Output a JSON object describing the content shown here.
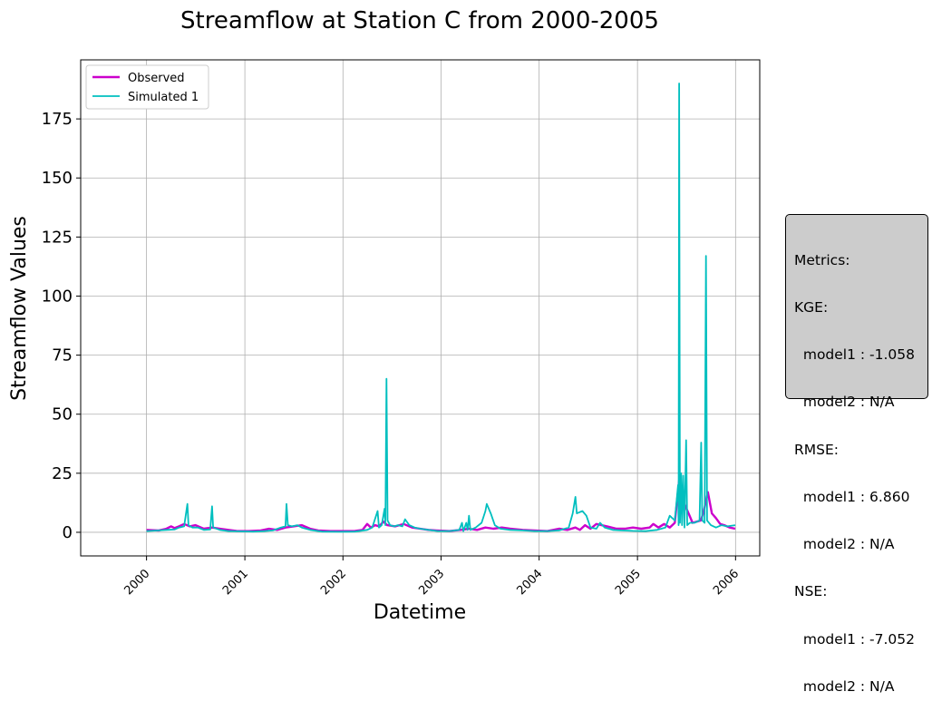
{
  "chart_data": {
    "type": "line",
    "title": "Streamflow at Station C from 2000-2005",
    "xlabel": "Datetime",
    "ylabel": "Streamflow Values",
    "x_range": [
      "1999-05-01",
      "2006-04-01"
    ],
    "ylim": [
      -10,
      200
    ],
    "x_ticks": [
      "2000",
      "2001",
      "2002",
      "2003",
      "2004",
      "2005",
      "2006"
    ],
    "y_ticks": [
      "0",
      "25",
      "50",
      "75",
      "100",
      "125",
      "150",
      "175"
    ],
    "grid": true,
    "legend": {
      "position": "top-left"
    },
    "series": [
      {
        "name": "Observed",
        "color": "#cc00cc",
        "points": [
          [
            "2000-01-01",
            1
          ],
          [
            "2000-02-15",
            0.8
          ],
          [
            "2000-03-15",
            1.5
          ],
          [
            "2000-04-01",
            2.5
          ],
          [
            "2000-04-15",
            1.8
          ],
          [
            "2000-05-01",
            2.5
          ],
          [
            "2000-05-20",
            3.5
          ],
          [
            "2000-06-10",
            2.5
          ],
          [
            "2000-07-01",
            3
          ],
          [
            "2000-08-01",
            1.5
          ],
          [
            "2000-09-01",
            2
          ],
          [
            "2000-10-01",
            1.5
          ],
          [
            "2000-11-01",
            1
          ],
          [
            "2000-12-01",
            0.6
          ],
          [
            "2001-01-15",
            0.5
          ],
          [
            "2001-03-01",
            0.8
          ],
          [
            "2001-04-01",
            1.5
          ],
          [
            "2001-05-01",
            1
          ],
          [
            "2001-06-01",
            2
          ],
          [
            "2001-07-01",
            2.5
          ],
          [
            "2001-08-01",
            3
          ],
          [
            "2001-09-01",
            1.5
          ],
          [
            "2001-10-01",
            0.8
          ],
          [
            "2001-11-15",
            0.5
          ],
          [
            "2002-01-01",
            0.5
          ],
          [
            "2002-02-15",
            0.6
          ],
          [
            "2002-03-15",
            1
          ],
          [
            "2002-04-01",
            3.5
          ],
          [
            "2002-04-15",
            2
          ],
          [
            "2002-05-01",
            3
          ],
          [
            "2002-05-15",
            2.5
          ],
          [
            "2002-06-01",
            4.5
          ],
          [
            "2002-06-15",
            3
          ],
          [
            "2002-07-15",
            2.5
          ],
          [
            "2002-08-15",
            3.5
          ],
          [
            "2002-09-15",
            2
          ],
          [
            "2002-10-15",
            1.5
          ],
          [
            "2002-11-15",
            1
          ],
          [
            "2002-12-15",
            0.8
          ],
          [
            "2003-02-01",
            0.5
          ],
          [
            "2003-03-15",
            1
          ],
          [
            "2003-04-15",
            1.5
          ],
          [
            "2003-05-15",
            1
          ],
          [
            "2003-06-15",
            2
          ],
          [
            "2003-07-15",
            1.5
          ],
          [
            "2003-08-15",
            2
          ],
          [
            "2003-09-15",
            1.5
          ],
          [
            "2003-11-01",
            1
          ],
          [
            "2003-12-15",
            0.8
          ],
          [
            "2004-02-01",
            0.5
          ],
          [
            "2004-03-15",
            1.5
          ],
          [
            "2004-04-15",
            1
          ],
          [
            "2004-05-15",
            2
          ],
          [
            "2004-06-01",
            1
          ],
          [
            "2004-06-20",
            3
          ],
          [
            "2004-07-10",
            1.5
          ],
          [
            "2004-08-01",
            3.5
          ],
          [
            "2004-08-20",
            3
          ],
          [
            "2004-09-10",
            2.5
          ],
          [
            "2004-10-15",
            1.5
          ],
          [
            "2004-11-15",
            1.5
          ],
          [
            "2004-12-15",
            2
          ],
          [
            "2005-01-15",
            1.5
          ],
          [
            "2005-02-15",
            2
          ],
          [
            "2005-03-01",
            3.5
          ],
          [
            "2005-03-20",
            2
          ],
          [
            "2005-04-10",
            3.5
          ],
          [
            "2005-05-01",
            2
          ],
          [
            "2005-05-20",
            4
          ],
          [
            "2005-06-05",
            22
          ],
          [
            "2005-06-15",
            18
          ],
          [
            "2005-06-25",
            12
          ],
          [
            "2005-07-10",
            8
          ],
          [
            "2005-07-25",
            4
          ],
          [
            "2005-08-10",
            4.5
          ],
          [
            "2005-08-25",
            5
          ],
          [
            "2005-09-05",
            9
          ],
          [
            "2005-09-20",
            17
          ],
          [
            "2005-10-05",
            8
          ],
          [
            "2005-10-20",
            6
          ],
          [
            "2005-11-05",
            3.5
          ],
          [
            "2005-11-20",
            3
          ],
          [
            "2005-12-10",
            2
          ],
          [
            "2005-12-31",
            1.5
          ]
        ]
      },
      {
        "name": "Simulated 1",
        "color": "#00bfbf",
        "points": [
          [
            "2000-01-01",
            0.5
          ],
          [
            "2000-02-15",
            0.8
          ],
          [
            "2000-03-15",
            1
          ],
          [
            "2000-04-15",
            1.2
          ],
          [
            "2000-05-01",
            2
          ],
          [
            "2000-05-20",
            2.5
          ],
          [
            "2000-06-01",
            12
          ],
          [
            "2000-06-05",
            3
          ],
          [
            "2000-06-20",
            2
          ],
          [
            "2000-07-10",
            2
          ],
          [
            "2000-08-01",
            1
          ],
          [
            "2000-08-25",
            1.2
          ],
          [
            "2000-09-01",
            11
          ],
          [
            "2000-09-05",
            2
          ],
          [
            "2000-09-30",
            1
          ],
          [
            "2000-11-01",
            0.5
          ],
          [
            "2000-12-15",
            0.4
          ],
          [
            "2001-02-01",
            0.3
          ],
          [
            "2001-03-15",
            0.5
          ],
          [
            "2001-04-15",
            0.8
          ],
          [
            "2001-05-15",
            2
          ],
          [
            "2001-06-01",
            2.5
          ],
          [
            "2001-06-05",
            12
          ],
          [
            "2001-06-10",
            3
          ],
          [
            "2001-06-25",
            2.5
          ],
          [
            "2001-07-15",
            3
          ],
          [
            "2001-08-01",
            2
          ],
          [
            "2001-09-01",
            1
          ],
          [
            "2001-10-15",
            0.3
          ],
          [
            "2001-12-15",
            0.2
          ],
          [
            "2002-02-15",
            0.3
          ],
          [
            "2002-04-01",
            1
          ],
          [
            "2002-04-20",
            2
          ],
          [
            "2002-05-10",
            9
          ],
          [
            "2002-05-15",
            2
          ],
          [
            "2002-05-25",
            3
          ],
          [
            "2002-06-05",
            10
          ],
          [
            "2002-06-08",
            3
          ],
          [
            "2002-06-12",
            65
          ],
          [
            "2002-06-16",
            5
          ],
          [
            "2002-06-25",
            3
          ],
          [
            "2002-07-10",
            2.5
          ],
          [
            "2002-07-25",
            3
          ],
          [
            "2002-08-10",
            2.5
          ],
          [
            "2002-08-20",
            5.5
          ],
          [
            "2002-09-05",
            3
          ],
          [
            "2002-09-25",
            2
          ],
          [
            "2002-10-15",
            1.5
          ],
          [
            "2002-11-15",
            1
          ],
          [
            "2002-12-20",
            0.5
          ],
          [
            "2003-02-01",
            0.5
          ],
          [
            "2003-03-10",
            1
          ],
          [
            "2003-03-20",
            4
          ],
          [
            "2003-03-25",
            0.5
          ],
          [
            "2003-04-05",
            4
          ],
          [
            "2003-04-10",
            1
          ],
          [
            "2003-04-15",
            7
          ],
          [
            "2003-04-20",
            1
          ],
          [
            "2003-05-10",
            2
          ],
          [
            "2003-06-01",
            4
          ],
          [
            "2003-06-15",
            9
          ],
          [
            "2003-06-20",
            12
          ],
          [
            "2003-07-05",
            8
          ],
          [
            "2003-07-20",
            3
          ],
          [
            "2003-08-10",
            1.5
          ],
          [
            "2003-09-15",
            1
          ],
          [
            "2003-11-01",
            0.8
          ],
          [
            "2003-12-15",
            0.5
          ],
          [
            "2004-02-01",
            0.5
          ],
          [
            "2004-03-15",
            0.8
          ],
          [
            "2004-04-20",
            2
          ],
          [
            "2004-05-05",
            8
          ],
          [
            "2004-05-15",
            15
          ],
          [
            "2004-05-20",
            8
          ],
          [
            "2004-06-10",
            9
          ],
          [
            "2004-06-25",
            7
          ],
          [
            "2004-07-10",
            2
          ],
          [
            "2004-08-01",
            1.5
          ],
          [
            "2004-08-15",
            4
          ],
          [
            "2004-09-01",
            2
          ],
          [
            "2004-10-01",
            1
          ],
          [
            "2004-11-01",
            0.8
          ],
          [
            "2004-12-15",
            0.6
          ],
          [
            "2005-02-01",
            0.5
          ],
          [
            "2005-03-15",
            1
          ],
          [
            "2005-04-15",
            2
          ],
          [
            "2005-05-01",
            7
          ],
          [
            "2005-05-20",
            5
          ],
          [
            "2005-06-01",
            20
          ],
          [
            "2005-06-03",
            3
          ],
          [
            "2005-06-05",
            190
          ],
          [
            "2005-06-08",
            4
          ],
          [
            "2005-06-12",
            25
          ],
          [
            "2005-06-16",
            3
          ],
          [
            "2005-06-20",
            24
          ],
          [
            "2005-06-25",
            2
          ],
          [
            "2005-07-01",
            39
          ],
          [
            "2005-07-05",
            3
          ],
          [
            "2005-07-15",
            4
          ],
          [
            "2005-08-01",
            4
          ],
          [
            "2005-08-20",
            5
          ],
          [
            "2005-08-26",
            38
          ],
          [
            "2005-08-30",
            5
          ],
          [
            "2005-09-08",
            4
          ],
          [
            "2005-09-13",
            117
          ],
          [
            "2005-09-17",
            5
          ],
          [
            "2005-10-01",
            3
          ],
          [
            "2005-10-20",
            2
          ],
          [
            "2005-11-10",
            3
          ],
          [
            "2005-12-01",
            2.5
          ],
          [
            "2005-12-31",
            3
          ]
        ]
      }
    ]
  },
  "metrics": {
    "lines": [
      "Metrics:",
      "KGE:",
      "  model1 : -1.058",
      "  model2 : N/A",
      "RMSE:",
      "  model1 : 6.860",
      "  model2 : N/A",
      "NSE:",
      "  model1 : -7.052",
      "  model2 : N/A"
    ]
  }
}
